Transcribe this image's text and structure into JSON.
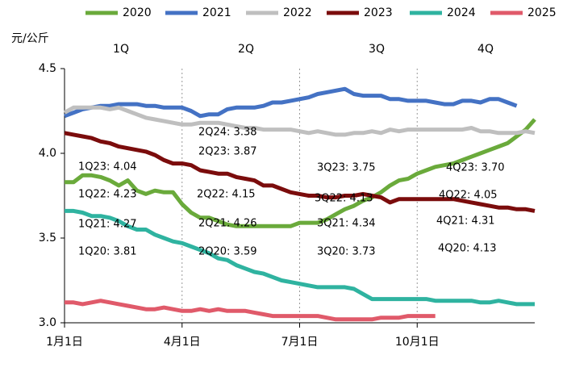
{
  "chart_data": {
    "type": "line",
    "y_label": "元/公斤",
    "quarters": [
      "1Q",
      "2Q",
      "3Q",
      "4Q"
    ],
    "categories": [
      "1月1日",
      null,
      null,
      null,
      null,
      null,
      null,
      null,
      null,
      null,
      null,
      null,
      null,
      "4月1日",
      null,
      null,
      null,
      null,
      null,
      null,
      null,
      null,
      null,
      null,
      null,
      null,
      "7月1日",
      null,
      null,
      null,
      null,
      null,
      null,
      null,
      null,
      null,
      null,
      null,
      null,
      "10月1日",
      null,
      null,
      null,
      null,
      null,
      null,
      null,
      null,
      null,
      null,
      null,
      null,
      null
    ],
    "ylim": [
      3,
      4.5
    ],
    "yticks": [
      {
        "value": 3,
        "label": "3.0"
      },
      3.5,
      {
        "value": 4,
        "label": "4.0"
      },
      4.5
    ],
    "series": [
      {
        "name": "2020",
        "color": "#6aaa3b",
        "values": [
          3.83,
          3.83,
          3.87,
          3.87,
          3.86,
          3.84,
          3.81,
          3.84,
          3.78,
          3.76,
          3.78,
          3.77,
          3.77,
          3.7,
          3.65,
          3.62,
          3.62,
          3.6,
          3.58,
          3.57,
          3.57,
          3.57,
          3.57,
          3.57,
          3.57,
          3.57,
          3.59,
          3.59,
          3.59,
          3.61,
          3.64,
          3.67,
          3.69,
          3.72,
          3.74,
          3.77,
          3.81,
          3.84,
          3.85,
          3.88,
          3.9,
          3.92,
          3.93,
          3.94,
          3.96,
          3.98,
          4.0,
          4.02,
          4.04,
          4.06,
          4.1,
          4.14,
          4.2
        ]
      },
      {
        "name": "2021",
        "color": "#4472c4",
        "values": [
          4.22,
          4.24,
          4.26,
          4.27,
          4.28,
          4.28,
          4.29,
          4.29,
          4.29,
          4.28,
          4.28,
          4.27,
          4.27,
          4.27,
          4.25,
          4.22,
          4.23,
          4.23,
          4.26,
          4.27,
          4.27,
          4.27,
          4.28,
          4.3,
          4.3,
          4.31,
          4.32,
          4.33,
          4.35,
          4.36,
          4.37,
          4.38,
          4.35,
          4.34,
          4.34,
          4.34,
          4.32,
          4.32,
          4.31,
          4.31,
          4.31,
          4.3,
          4.29,
          4.29,
          4.31,
          4.31,
          4.3,
          4.32,
          4.32,
          4.3,
          4.28,
          null,
          null
        ]
      },
      {
        "name": "2022",
        "color": "#bfbfbf",
        "values": [
          4.24,
          4.27,
          4.27,
          4.27,
          4.27,
          4.26,
          4.27,
          4.25,
          4.23,
          4.21,
          4.2,
          4.19,
          4.18,
          4.17,
          4.17,
          4.18,
          4.18,
          4.18,
          4.17,
          4.16,
          4.15,
          4.15,
          4.14,
          4.14,
          4.14,
          4.14,
          4.13,
          4.12,
          4.13,
          4.12,
          4.11,
          4.11,
          4.12,
          4.12,
          4.13,
          4.12,
          4.14,
          4.13,
          4.14,
          4.14,
          4.14,
          4.14,
          4.14,
          4.14,
          4.14,
          4.15,
          4.13,
          4.13,
          4.12,
          4.12,
          4.12,
          4.13,
          4.12
        ]
      },
      {
        "name": "2023",
        "color": "#7b0c0c",
        "values": [
          4.12,
          4.11,
          4.1,
          4.09,
          4.07,
          4.06,
          4.04,
          4.03,
          4.02,
          4.01,
          3.99,
          3.96,
          3.94,
          3.94,
          3.93,
          3.9,
          3.89,
          3.88,
          3.88,
          3.86,
          3.85,
          3.84,
          3.81,
          3.81,
          3.79,
          3.77,
          3.76,
          3.75,
          3.75,
          3.74,
          3.74,
          3.75,
          3.75,
          3.76,
          3.75,
          3.74,
          3.71,
          3.73,
          3.73,
          3.73,
          3.73,
          3.73,
          3.73,
          3.73,
          3.72,
          3.71,
          3.7,
          3.69,
          3.68,
          3.68,
          3.67,
          3.67,
          3.66
        ]
      },
      {
        "name": "2024",
        "color": "#2fb3a0",
        "values": [
          3.66,
          3.66,
          3.65,
          3.63,
          3.63,
          3.62,
          3.6,
          3.57,
          3.55,
          3.55,
          3.52,
          3.5,
          3.48,
          3.47,
          3.45,
          3.43,
          3.41,
          3.38,
          3.37,
          3.34,
          3.32,
          3.3,
          3.29,
          3.27,
          3.25,
          3.24,
          3.23,
          3.22,
          3.21,
          3.21,
          3.21,
          3.21,
          3.2,
          3.17,
          3.14,
          3.14,
          3.14,
          3.14,
          3.14,
          3.14,
          3.14,
          3.13,
          3.13,
          3.13,
          3.13,
          3.13,
          3.12,
          3.12,
          3.13,
          3.12,
          3.11,
          3.11,
          3.11
        ]
      },
      {
        "name": "2025",
        "color": "#e05a6a",
        "values": [
          3.12,
          3.12,
          3.11,
          3.12,
          3.13,
          3.12,
          3.11,
          3.1,
          3.09,
          3.08,
          3.08,
          3.09,
          3.08,
          3.07,
          3.07,
          3.08,
          3.07,
          3.08,
          3.07,
          3.07,
          3.07,
          3.06,
          3.05,
          3.04,
          3.04,
          3.04,
          3.04,
          3.04,
          3.04,
          3.03,
          3.02,
          3.02,
          3.02,
          3.02,
          3.02,
          3.03,
          3.03,
          3.03,
          3.04,
          3.04,
          3.04,
          3.04,
          null,
          null,
          null,
          null,
          null,
          null,
          null,
          null,
          null,
          null,
          null
        ]
      }
    ],
    "annotations": [
      "1Q23: 4.04",
      "1Q22: 4.23",
      "1Q21: 4.27",
      "1Q20: 3.81",
      "2Q24: 3.38",
      "2Q23: 3.87",
      "2Q22: 4.15",
      "2Q21: 4.26",
      "2Q20: 3.59",
      "3Q23: 3.75",
      "3Q22: 4.13",
      "3Q21: 4.34",
      "3Q20: 3.73",
      "4Q23: 3.70",
      "4Q22: 4.05",
      "4Q21: 4.31",
      "4Q20: 4.13"
    ]
  }
}
